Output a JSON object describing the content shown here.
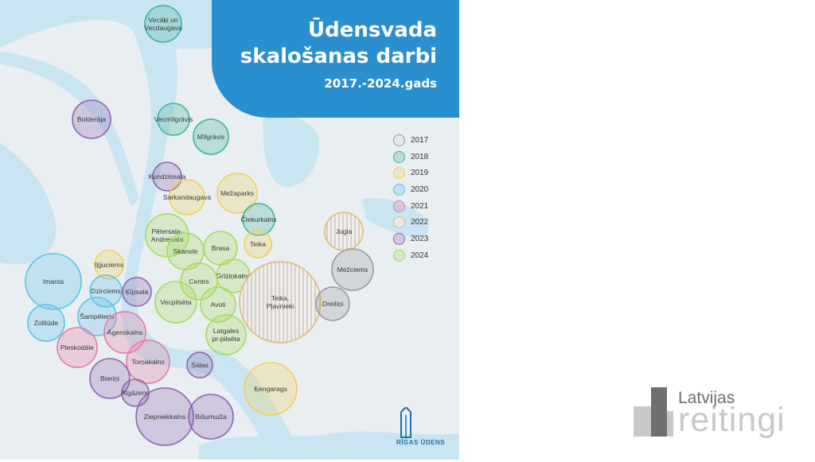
{
  "title": {
    "line1": "Ūdensvada",
    "line2": "skalošanas darbi",
    "subtitle": "2017.-2024.gads"
  },
  "years": {
    "2017": {
      "label": "2017",
      "color": "#9a9a9a"
    },
    "2018": {
      "label": "2018",
      "color": "#3fb59a"
    },
    "2019": {
      "label": "2019",
      "color": "#f2cf55"
    },
    "2020": {
      "label": "2020",
      "color": "#5cc3e6"
    },
    "2021": {
      "label": "2021",
      "color": "#e57aa6"
    },
    "2022": {
      "label": "2022",
      "color": "#e3b975"
    },
    "2023": {
      "label": "2023",
      "color": "#8d64ad"
    },
    "2024": {
      "label": "2024",
      "color": "#a5db5b"
    }
  },
  "legend_order": [
    "2017",
    "2018",
    "2019",
    "2020",
    "2021",
    "2022",
    "2023",
    "2024"
  ],
  "districts": [
    {
      "name": "Vecāķi un Vecdaugava",
      "year": "2018"
    },
    {
      "name": "Bolderāja",
      "year": "2023"
    },
    {
      "name": "Vecmīlgrāvis",
      "year": "2018"
    },
    {
      "name": "Mīlgrāvis",
      "year": "2018"
    },
    {
      "name": "Kundziņsala",
      "year": "2023"
    },
    {
      "name": "Sarkandaugava",
      "year": "2019"
    },
    {
      "name": "Mežaparks",
      "year": "2019"
    },
    {
      "name": "Čiekurkalns",
      "year": "2018"
    },
    {
      "name": "Teika",
      "year": "2019"
    },
    {
      "name": "Jugla",
      "year": "2022"
    },
    {
      "name": "Mežciems",
      "year": "2017"
    },
    {
      "name": "Pētersala-Andrejsala",
      "year": "2024"
    },
    {
      "name": "Skanste",
      "year": "2024"
    },
    {
      "name": "Brasa",
      "year": "2024"
    },
    {
      "name": "Grīziņkalns",
      "year": "2024"
    },
    {
      "name": "Centrs",
      "year": "2024"
    },
    {
      "name": "Vecpilsēta",
      "year": "2024"
    },
    {
      "name": "Avoti",
      "year": "2024"
    },
    {
      "name": "Teika, Pļavnieki",
      "year": "2022"
    },
    {
      "name": "Dreiliņi",
      "year": "2017"
    },
    {
      "name": "Latgales pr-pilsēta",
      "year": "2024"
    },
    {
      "name": "Iļģuciems",
      "year": "2019"
    },
    {
      "name": "Imanta",
      "year": "2020"
    },
    {
      "name": "Dzirciems",
      "year": "2020"
    },
    {
      "name": "Ķīpsala",
      "year": "2023"
    },
    {
      "name": "Zolitūde",
      "year": "2020"
    },
    {
      "name": "Šampēteris",
      "year": "2020"
    },
    {
      "name": "Āgenskalns",
      "year": "2021"
    },
    {
      "name": "Pleskodāle",
      "year": "2021"
    },
    {
      "name": "Torņakalns",
      "year": "2021"
    },
    {
      "name": "Salas",
      "year": "2023"
    },
    {
      "name": "Bieriņi",
      "year": "2023"
    },
    {
      "name": "Atgāzene",
      "year": "2023"
    },
    {
      "name": "Ķengarags",
      "year": "2019"
    },
    {
      "name": "Ziepniekkalns",
      "year": "2023"
    },
    {
      "name": "Bišumuiža",
      "year": "2023"
    }
  ],
  "logo": {
    "text": "RĪGAS ŪDENS"
  },
  "watermark": {
    "line1": "Latvijas",
    "line2": "reitingi"
  }
}
